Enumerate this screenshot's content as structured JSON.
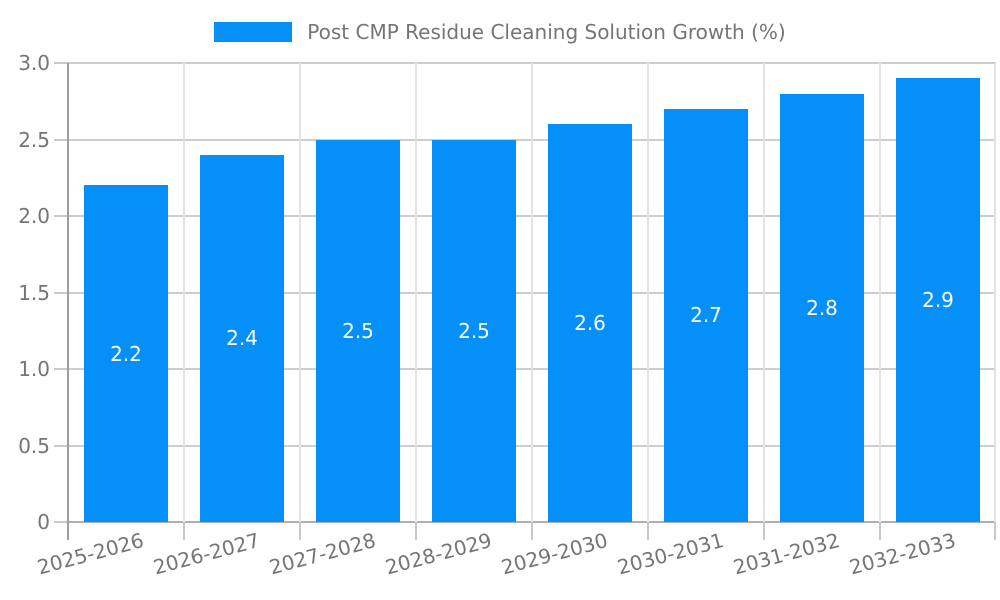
{
  "chart_data": {
    "type": "bar",
    "title": "Post CMP Residue Cleaning Solution Growth (%)",
    "categories": [
      "2025-2026",
      "2026-2027",
      "2027-2028",
      "2028-2029",
      "2029-2030",
      "2030-2031",
      "2031-2032",
      "2032-2033"
    ],
    "values": [
      2.2,
      2.4,
      2.5,
      2.5,
      2.6,
      2.7,
      2.8,
      2.9
    ],
    "value_labels": [
      "2.2",
      "2.4",
      "2.5",
      "2.5",
      "2.6",
      "2.7",
      "2.8",
      "2.9"
    ],
    "xlabel": "",
    "ylabel": "",
    "ylim": [
      0,
      3.0
    ],
    "yticks": [
      {
        "value": 3.0,
        "label": "3.0"
      },
      {
        "value": 2.5,
        "label": "2.5"
      },
      {
        "value": 2.0,
        "label": "2.0"
      },
      {
        "value": 1.5,
        "label": "1.5"
      },
      {
        "value": 1.0,
        "label": "1.0"
      },
      {
        "value": 0.5,
        "label": "0.5"
      },
      {
        "value": 0.0,
        "label": "0"
      }
    ],
    "grid": true,
    "legend_position": "top",
    "x_label_rotation_deg": -15,
    "colors": {
      "bar": "#0490F8",
      "value_label": "#ffffff",
      "axis_text": "#757575",
      "axis_line": "#9e9e9e",
      "gridline_horizontal": "#cdcdcd",
      "gridline_vertical": "#e3e3e3",
      "baseline": "#b0b0b0",
      "tick": "#c9c9c9",
      "background": "#ffffff"
    }
  }
}
